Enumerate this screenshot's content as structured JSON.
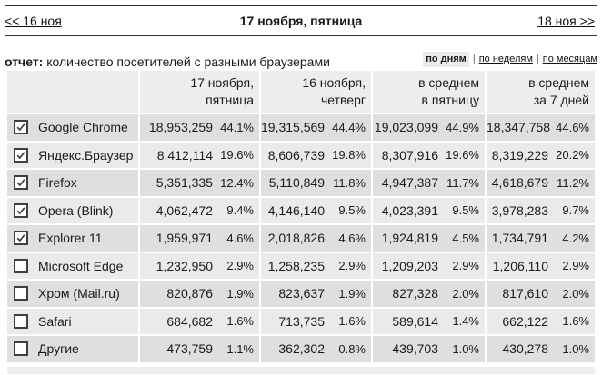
{
  "nav": {
    "prev": "<< 16 ноя",
    "title": "17 ноября, пятница",
    "next": "18 ноя >>"
  },
  "report": {
    "label": "отчет:",
    "description": "количество посетителей с разными браузерами"
  },
  "period": {
    "separator": "|",
    "options": [
      {
        "label": "по дням",
        "selected": true
      },
      {
        "label": "по неделям",
        "selected": false
      },
      {
        "label": "по месяцам",
        "selected": false
      }
    ]
  },
  "table": {
    "column_groups": [
      {
        "line1": "17 ноября,",
        "line2": "пятница"
      },
      {
        "line1": "16 ноября,",
        "line2": "четверг"
      },
      {
        "line1": "в среднем",
        "line2": "в пятницу"
      },
      {
        "line1": "в среднем",
        "line2": "за 7 дней"
      }
    ],
    "rows": [
      {
        "name": "Google Chrome",
        "checked": true,
        "cells": [
          {
            "value": "18,953,259",
            "percent": "44.1%"
          },
          {
            "value": "19,315,569",
            "percent": "44.4%"
          },
          {
            "value": "19,023,099",
            "percent": "44.9%"
          },
          {
            "value": "18,347,758",
            "percent": "44.6%"
          }
        ]
      },
      {
        "name": "Яндекс.Браузер",
        "checked": true,
        "cells": [
          {
            "value": "8,412,114",
            "percent": "19.6%"
          },
          {
            "value": "8,606,739",
            "percent": "19.8%"
          },
          {
            "value": "8,307,916",
            "percent": "19.6%"
          },
          {
            "value": "8,319,229",
            "percent": "20.2%"
          }
        ]
      },
      {
        "name": "Firefox",
        "checked": true,
        "cells": [
          {
            "value": "5,351,335",
            "percent": "12.4%"
          },
          {
            "value": "5,110,849",
            "percent": "11.8%"
          },
          {
            "value": "4,947,387",
            "percent": "11.7%"
          },
          {
            "value": "4,618,679",
            "percent": "11.2%"
          }
        ]
      },
      {
        "name": "Opera (Blink)",
        "checked": true,
        "cells": [
          {
            "value": "4,062,472",
            "percent": "9.4%"
          },
          {
            "value": "4,146,140",
            "percent": "9.5%"
          },
          {
            "value": "4,023,391",
            "percent": "9.5%"
          },
          {
            "value": "3,978,283",
            "percent": "9.7%"
          }
        ]
      },
      {
        "name": "Explorer 11",
        "checked": true,
        "cells": [
          {
            "value": "1,959,971",
            "percent": "4.6%"
          },
          {
            "value": "2,018,826",
            "percent": "4.6%"
          },
          {
            "value": "1,924,819",
            "percent": "4.5%"
          },
          {
            "value": "1,734,791",
            "percent": "4.2%"
          }
        ]
      },
      {
        "name": "Microsoft Edge",
        "checked": false,
        "cells": [
          {
            "value": "1,232,950",
            "percent": "2.9%"
          },
          {
            "value": "1,258,235",
            "percent": "2.9%"
          },
          {
            "value": "1,209,203",
            "percent": "2.9%"
          },
          {
            "value": "1,206,110",
            "percent": "2.9%"
          }
        ]
      },
      {
        "name": "Хром (Mail.ru)",
        "checked": false,
        "cells": [
          {
            "value": "820,876",
            "percent": "1.9%"
          },
          {
            "value": "823,637",
            "percent": "1.9%"
          },
          {
            "value": "827,328",
            "percent": "2.0%"
          },
          {
            "value": "817,610",
            "percent": "2.0%"
          }
        ]
      },
      {
        "name": "Safari",
        "checked": false,
        "cells": [
          {
            "value": "684,682",
            "percent": "1.6%"
          },
          {
            "value": "713,735",
            "percent": "1.6%"
          },
          {
            "value": "589,614",
            "percent": "1.4%"
          },
          {
            "value": "662,122",
            "percent": "1.6%"
          }
        ]
      },
      {
        "name": "Другие",
        "checked": false,
        "cells": [
          {
            "value": "473,759",
            "percent": "1.1%"
          },
          {
            "value": "362,302",
            "percent": "0.8%"
          },
          {
            "value": "439,703",
            "percent": "1.0%"
          },
          {
            "value": "430,278",
            "percent": "1.0%"
          }
        ]
      }
    ]
  },
  "colors": {
    "header_bg": "#ededed",
    "row_odd_bg": "#dfdfdf",
    "row_even_bg": "#eaeaea",
    "text": "#1a1a1a",
    "rule": "#333333"
  }
}
